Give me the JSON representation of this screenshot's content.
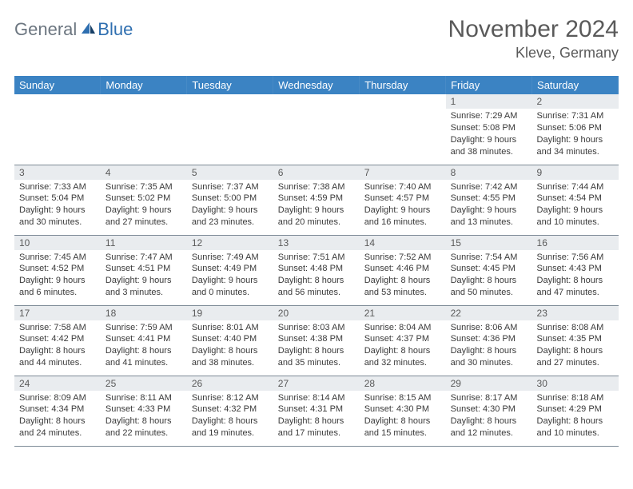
{
  "brand": {
    "general": "General",
    "blue": "Blue"
  },
  "title": "November 2024",
  "location": "Kleve, Germany",
  "colors": {
    "header_bg": "#3b83c3",
    "header_text": "#ffffff",
    "daynum_bg": "#e9ecef",
    "text": "#3a3a3a",
    "rule": "#7d8a96"
  },
  "weekdays": [
    "Sunday",
    "Monday",
    "Tuesday",
    "Wednesday",
    "Thursday",
    "Friday",
    "Saturday"
  ],
  "weeks": [
    [
      {
        "n": "",
        "sr": "",
        "ss": "",
        "dl": ""
      },
      {
        "n": "",
        "sr": "",
        "ss": "",
        "dl": ""
      },
      {
        "n": "",
        "sr": "",
        "ss": "",
        "dl": ""
      },
      {
        "n": "",
        "sr": "",
        "ss": "",
        "dl": ""
      },
      {
        "n": "",
        "sr": "",
        "ss": "",
        "dl": ""
      },
      {
        "n": "1",
        "sr": "Sunrise: 7:29 AM",
        "ss": "Sunset: 5:08 PM",
        "dl": "Daylight: 9 hours and 38 minutes."
      },
      {
        "n": "2",
        "sr": "Sunrise: 7:31 AM",
        "ss": "Sunset: 5:06 PM",
        "dl": "Daylight: 9 hours and 34 minutes."
      }
    ],
    [
      {
        "n": "3",
        "sr": "Sunrise: 7:33 AM",
        "ss": "Sunset: 5:04 PM",
        "dl": "Daylight: 9 hours and 30 minutes."
      },
      {
        "n": "4",
        "sr": "Sunrise: 7:35 AM",
        "ss": "Sunset: 5:02 PM",
        "dl": "Daylight: 9 hours and 27 minutes."
      },
      {
        "n": "5",
        "sr": "Sunrise: 7:37 AM",
        "ss": "Sunset: 5:00 PM",
        "dl": "Daylight: 9 hours and 23 minutes."
      },
      {
        "n": "6",
        "sr": "Sunrise: 7:38 AM",
        "ss": "Sunset: 4:59 PM",
        "dl": "Daylight: 9 hours and 20 minutes."
      },
      {
        "n": "7",
        "sr": "Sunrise: 7:40 AM",
        "ss": "Sunset: 4:57 PM",
        "dl": "Daylight: 9 hours and 16 minutes."
      },
      {
        "n": "8",
        "sr": "Sunrise: 7:42 AM",
        "ss": "Sunset: 4:55 PM",
        "dl": "Daylight: 9 hours and 13 minutes."
      },
      {
        "n": "9",
        "sr": "Sunrise: 7:44 AM",
        "ss": "Sunset: 4:54 PM",
        "dl": "Daylight: 9 hours and 10 minutes."
      }
    ],
    [
      {
        "n": "10",
        "sr": "Sunrise: 7:45 AM",
        "ss": "Sunset: 4:52 PM",
        "dl": "Daylight: 9 hours and 6 minutes."
      },
      {
        "n": "11",
        "sr": "Sunrise: 7:47 AM",
        "ss": "Sunset: 4:51 PM",
        "dl": "Daylight: 9 hours and 3 minutes."
      },
      {
        "n": "12",
        "sr": "Sunrise: 7:49 AM",
        "ss": "Sunset: 4:49 PM",
        "dl": "Daylight: 9 hours and 0 minutes."
      },
      {
        "n": "13",
        "sr": "Sunrise: 7:51 AM",
        "ss": "Sunset: 4:48 PM",
        "dl": "Daylight: 8 hours and 56 minutes."
      },
      {
        "n": "14",
        "sr": "Sunrise: 7:52 AM",
        "ss": "Sunset: 4:46 PM",
        "dl": "Daylight: 8 hours and 53 minutes."
      },
      {
        "n": "15",
        "sr": "Sunrise: 7:54 AM",
        "ss": "Sunset: 4:45 PM",
        "dl": "Daylight: 8 hours and 50 minutes."
      },
      {
        "n": "16",
        "sr": "Sunrise: 7:56 AM",
        "ss": "Sunset: 4:43 PM",
        "dl": "Daylight: 8 hours and 47 minutes."
      }
    ],
    [
      {
        "n": "17",
        "sr": "Sunrise: 7:58 AM",
        "ss": "Sunset: 4:42 PM",
        "dl": "Daylight: 8 hours and 44 minutes."
      },
      {
        "n": "18",
        "sr": "Sunrise: 7:59 AM",
        "ss": "Sunset: 4:41 PM",
        "dl": "Daylight: 8 hours and 41 minutes."
      },
      {
        "n": "19",
        "sr": "Sunrise: 8:01 AM",
        "ss": "Sunset: 4:40 PM",
        "dl": "Daylight: 8 hours and 38 minutes."
      },
      {
        "n": "20",
        "sr": "Sunrise: 8:03 AM",
        "ss": "Sunset: 4:38 PM",
        "dl": "Daylight: 8 hours and 35 minutes."
      },
      {
        "n": "21",
        "sr": "Sunrise: 8:04 AM",
        "ss": "Sunset: 4:37 PM",
        "dl": "Daylight: 8 hours and 32 minutes."
      },
      {
        "n": "22",
        "sr": "Sunrise: 8:06 AM",
        "ss": "Sunset: 4:36 PM",
        "dl": "Daylight: 8 hours and 30 minutes."
      },
      {
        "n": "23",
        "sr": "Sunrise: 8:08 AM",
        "ss": "Sunset: 4:35 PM",
        "dl": "Daylight: 8 hours and 27 minutes."
      }
    ],
    [
      {
        "n": "24",
        "sr": "Sunrise: 8:09 AM",
        "ss": "Sunset: 4:34 PM",
        "dl": "Daylight: 8 hours and 24 minutes."
      },
      {
        "n": "25",
        "sr": "Sunrise: 8:11 AM",
        "ss": "Sunset: 4:33 PM",
        "dl": "Daylight: 8 hours and 22 minutes."
      },
      {
        "n": "26",
        "sr": "Sunrise: 8:12 AM",
        "ss": "Sunset: 4:32 PM",
        "dl": "Daylight: 8 hours and 19 minutes."
      },
      {
        "n": "27",
        "sr": "Sunrise: 8:14 AM",
        "ss": "Sunset: 4:31 PM",
        "dl": "Daylight: 8 hours and 17 minutes."
      },
      {
        "n": "28",
        "sr": "Sunrise: 8:15 AM",
        "ss": "Sunset: 4:30 PM",
        "dl": "Daylight: 8 hours and 15 minutes."
      },
      {
        "n": "29",
        "sr": "Sunrise: 8:17 AM",
        "ss": "Sunset: 4:30 PM",
        "dl": "Daylight: 8 hours and 12 minutes."
      },
      {
        "n": "30",
        "sr": "Sunrise: 8:18 AM",
        "ss": "Sunset: 4:29 PM",
        "dl": "Daylight: 8 hours and 10 minutes."
      }
    ]
  ]
}
